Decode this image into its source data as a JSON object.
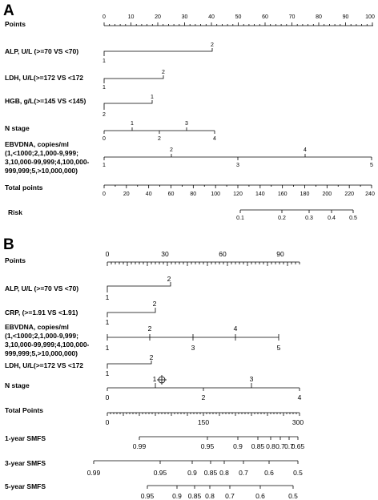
{
  "panel_a": {
    "letter": "A",
    "rows": [
      {
        "id": "points",
        "label": [
          "Points"
        ],
        "ticks": [
          "0",
          "10",
          "20",
          "30",
          "40",
          "50",
          "60",
          "70",
          "80",
          "90",
          "100"
        ]
      },
      {
        "id": "alp",
        "label": [
          "ALP, U/L (>=70 VS <70)"
        ],
        "ticks": [
          "2",
          "1"
        ]
      },
      {
        "id": "ldh",
        "label": [
          "LDH, U/L(>=172 VS <172"
        ],
        "ticks": [
          "2",
          "1"
        ]
      },
      {
        "id": "hgb",
        "label": [
          "HGB, g/L(>=145 VS <145)"
        ],
        "ticks": [
          "1",
          "2"
        ]
      },
      {
        "id": "nstage",
        "label": [
          "N stage"
        ],
        "ticks": [
          "1",
          "3",
          "0",
          "2",
          "4"
        ]
      },
      {
        "id": "ebv",
        "label": [
          "EBVDNA, copies/ml",
          "(1,<1000;2,1,000-9,999;",
          "3,10,000-99,999;4,100,000-",
          "999,999;5,>10,000,000)"
        ],
        "ticks": [
          "2",
          "4",
          "1",
          "3",
          "5"
        ]
      },
      {
        "id": "total",
        "label": [
          "Total points"
        ],
        "ticks": [
          "0",
          "20",
          "40",
          "60",
          "80",
          "100",
          "120",
          "140",
          "160",
          "180",
          "200",
          "220",
          "240"
        ]
      },
      {
        "id": "risk",
        "label": [
          "Risk"
        ],
        "ticks": [
          "0.1",
          "0.2",
          "0.3",
          "0.4",
          "0.5"
        ]
      }
    ]
  },
  "panel_b": {
    "letter": "B",
    "rows": [
      {
        "id": "points",
        "label": [
          "Points"
        ],
        "ticks": [
          "0",
          "30",
          "60",
          "90"
        ]
      },
      {
        "id": "alp",
        "label": [
          "ALP, U/L (>=70 VS <70)"
        ],
        "ticks": [
          "2",
          "1"
        ]
      },
      {
        "id": "crp",
        "label": [
          "CRP, (>=1.91 VS <1.91)"
        ],
        "ticks": [
          "2",
          "1"
        ]
      },
      {
        "id": "ebv",
        "label": [
          "EBVDNA, copies/ml",
          "(1,<1000;2,1,000-9,999;",
          "3,10,000-99,999;4,100,000-",
          "999,999;5,>10,000,000)"
        ],
        "ticks": [
          "2",
          "4",
          "1",
          "3",
          "5"
        ]
      },
      {
        "id": "ldh",
        "label": [
          "LDH, U/L(>=172 VS <172"
        ],
        "ticks": [
          "2",
          "1"
        ]
      },
      {
        "id": "nstage",
        "label": [
          "N stage"
        ],
        "ticks": [
          "1",
          "3",
          "0",
          "2",
          "4"
        ]
      },
      {
        "id": "total",
        "label": [
          "Total Points"
        ],
        "ticks": [
          "0",
          "150",
          "300"
        ]
      },
      {
        "id": "smfs1",
        "label": [
          "1-year SMFS"
        ],
        "ticks": [
          "0.99",
          "0.95",
          "0.9",
          "0.85",
          "0.8",
          "0.7",
          "0.7",
          "0.65"
        ]
      },
      {
        "id": "smfs3",
        "label": [
          "3-year SMFS"
        ],
        "ticks": [
          "0.99",
          "0.95",
          "0.9",
          "0.85",
          "0.8",
          "0.7",
          "0.6",
          "0.5"
        ]
      },
      {
        "id": "smfs5",
        "label": [
          "5-year SMFS"
        ],
        "ticks": [
          "0.95",
          "0.9",
          "0.85",
          "0.8",
          "0.7",
          "0.6",
          "0.5"
        ]
      }
    ]
  }
}
